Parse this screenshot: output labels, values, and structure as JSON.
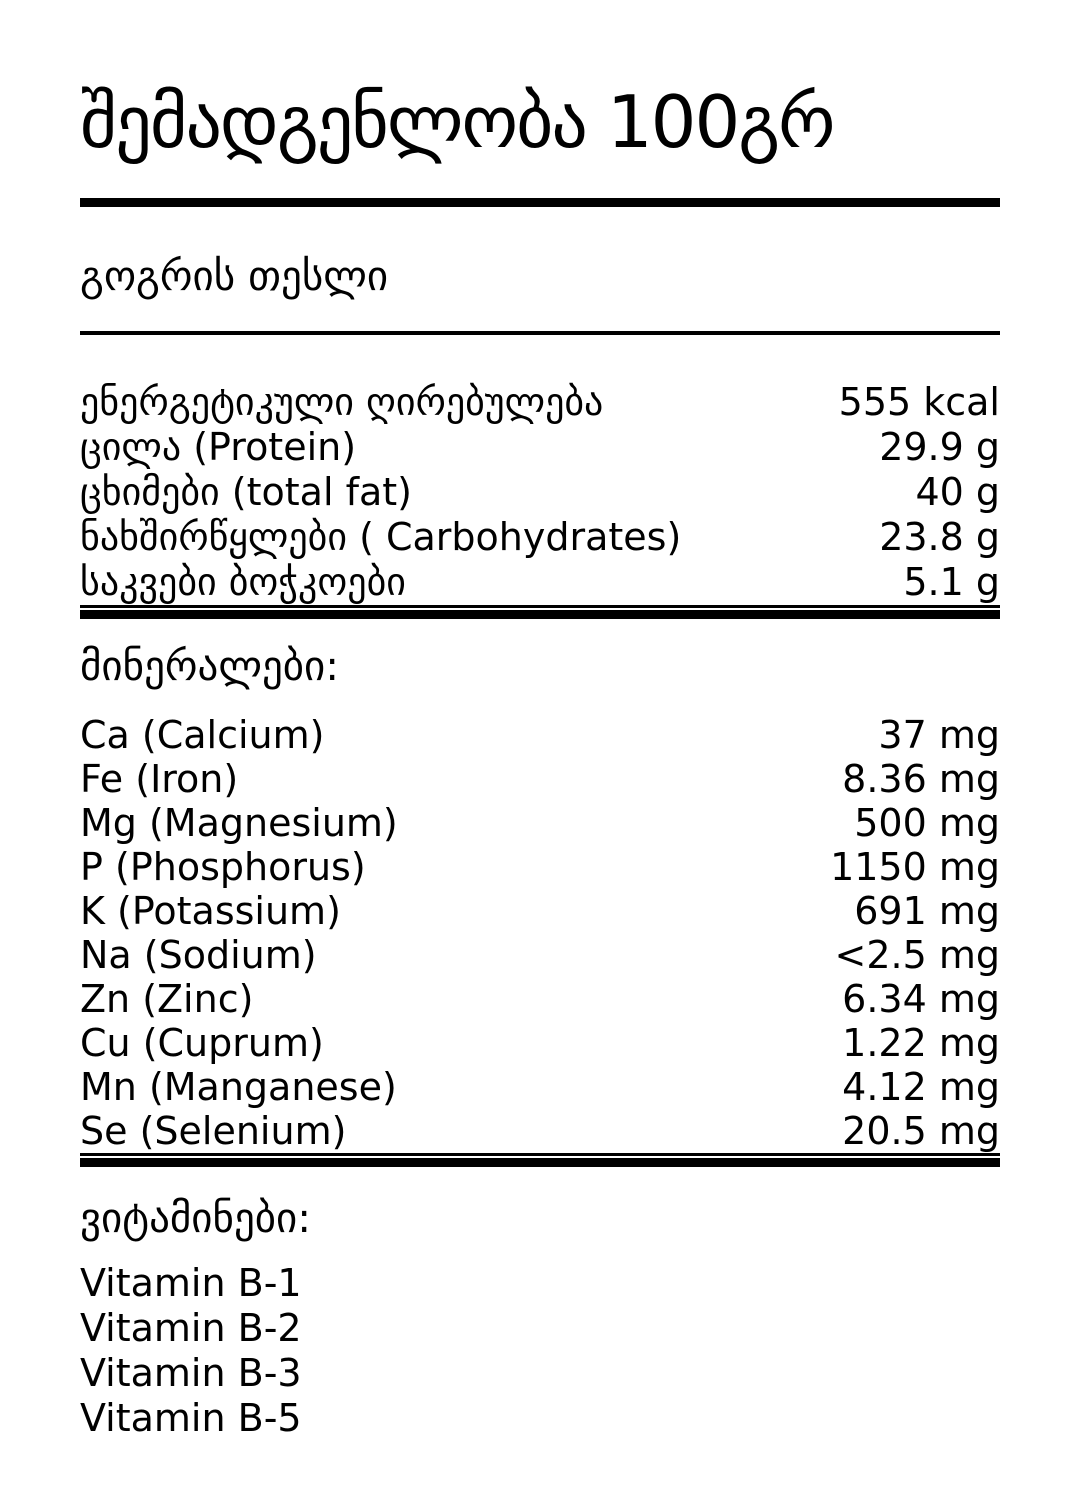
{
  "document": {
    "title": "შემადგენლობა 100გრ",
    "product_name": "გოგრის თესლი"
  },
  "nutrition_facts": {
    "rows": [
      {
        "label": "ენერგეტიკული ღირებულება",
        "value": "555 kcal"
      },
      {
        "label": "ცილა (Protein)",
        "value": "29.9 g"
      },
      {
        "label": "ცხიმები (total fat)",
        "value": "40 g"
      },
      {
        "label": "ნახშირწყლები ( Carbohydrates)",
        "value": "23.8 g"
      },
      {
        "label": "საკვები ბოჭკოები",
        "value": "5.1 g"
      }
    ]
  },
  "minerals": {
    "heading": "მინერალები:",
    "rows": [
      {
        "label": "Ca (Calcium)",
        "value": "37 mg"
      },
      {
        "label": "Fe (Iron)",
        "value": "8.36 mg"
      },
      {
        "label": "Mg (Magnesium)",
        "value": "500 mg"
      },
      {
        "label": "P (Phosphorus)",
        "value": "1150 mg"
      },
      {
        "label": "K (Potassium)",
        "value": "691 mg"
      },
      {
        "label": "Na (Sodium)",
        "value": "<2.5 mg"
      },
      {
        "label": "Zn (Zinc)",
        "value": "6.34 mg"
      },
      {
        "label": "Cu (Cuprum)",
        "value": "1.22 mg"
      },
      {
        "label": "Mn (Manganese)",
        "value": "4.12 mg"
      },
      {
        "label": "Se (Selenium)",
        "value": "20.5 mg"
      }
    ]
  },
  "vitamins": {
    "heading": "ვიტამინები:",
    "items": [
      "Vitamin B-1",
      "Vitamin B-2",
      "Vitamin B-3",
      "Vitamin B-5"
    ]
  },
  "colors": {
    "text": "#000000",
    "background": "#ffffff",
    "rule": "#000000"
  }
}
